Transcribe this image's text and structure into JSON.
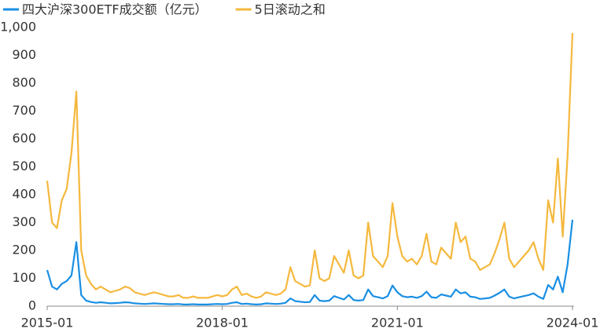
{
  "chart_data": {
    "type": "line",
    "x": [
      "2015-01",
      "2015-02",
      "2015-03",
      "2015-04",
      "2015-05",
      "2015-06",
      "2015-07",
      "2015-08",
      "2015-09",
      "2015-10",
      "2015-11",
      "2015-12",
      "2016-01",
      "2016-02",
      "2016-03",
      "2016-04",
      "2016-05",
      "2016-06",
      "2016-07",
      "2016-08",
      "2016-09",
      "2016-10",
      "2016-11",
      "2016-12",
      "2017-01",
      "2017-02",
      "2017-03",
      "2017-04",
      "2017-05",
      "2017-06",
      "2017-07",
      "2017-08",
      "2017-09",
      "2017-10",
      "2017-11",
      "2017-12",
      "2018-01",
      "2018-02",
      "2018-03",
      "2018-04",
      "2018-05",
      "2018-06",
      "2018-07",
      "2018-08",
      "2018-09",
      "2018-10",
      "2018-11",
      "2018-12",
      "2019-01",
      "2019-02",
      "2019-03",
      "2019-04",
      "2019-05",
      "2019-06",
      "2019-07",
      "2019-08",
      "2019-09",
      "2019-10",
      "2019-11",
      "2019-12",
      "2020-01",
      "2020-02",
      "2020-03",
      "2020-04",
      "2020-05",
      "2020-06",
      "2020-07",
      "2020-08",
      "2020-09",
      "2020-10",
      "2020-11",
      "2020-12",
      "2021-01",
      "2021-02",
      "2021-03",
      "2021-04",
      "2021-05",
      "2021-06",
      "2021-07",
      "2021-08",
      "2021-09",
      "2021-10",
      "2021-11",
      "2021-12",
      "2022-01",
      "2022-02",
      "2022-03",
      "2022-04",
      "2022-05",
      "2022-06",
      "2022-07",
      "2022-08",
      "2022-09",
      "2022-10",
      "2022-11",
      "2022-12",
      "2023-01",
      "2023-02",
      "2023-03",
      "2023-04",
      "2023-05",
      "2023-06",
      "2023-07",
      "2023-08",
      "2023-09",
      "2023-10",
      "2023-11",
      "2023-12",
      "2024-01"
    ],
    "series": [
      {
        "name": "四大沪深300ETF成交额（亿元）",
        "color": "#1a8fe3",
        "values": [
          130,
          70,
          60,
          80,
          90,
          110,
          230,
          40,
          20,
          15,
          12,
          14,
          12,
          10,
          11,
          12,
          14,
          13,
          10,
          9,
          8,
          9,
          10,
          9,
          8,
          7,
          7,
          8,
          6,
          6,
          7,
          6,
          6,
          6,
          7,
          8,
          7,
          8,
          12,
          14,
          8,
          9,
          7,
          6,
          7,
          10,
          9,
          8,
          9,
          12,
          28,
          18,
          16,
          14,
          15,
          40,
          20,
          18,
          20,
          36,
          30,
          24,
          40,
          22,
          20,
          22,
          60,
          36,
          32,
          28,
          36,
          74,
          50,
          36,
          32,
          34,
          30,
          36,
          52,
          32,
          30,
          42,
          38,
          34,
          60,
          46,
          50,
          34,
          32,
          26,
          28,
          30,
          38,
          48,
          60,
          34,
          28,
          32,
          36,
          40,
          46,
          34,
          26,
          76,
          60,
          106,
          50,
          150,
          310
        ]
      },
      {
        "name": "5日滚动之和",
        "color": "#f5b83d",
        "values": [
          450,
          300,
          280,
          380,
          420,
          550,
          770,
          200,
          110,
          80,
          60,
          70,
          60,
          50,
          55,
          60,
          70,
          65,
          50,
          45,
          40,
          45,
          50,
          45,
          40,
          35,
          35,
          40,
          30,
          30,
          35,
          30,
          30,
          30,
          35,
          40,
          35,
          40,
          60,
          70,
          40,
          45,
          35,
          30,
          35,
          50,
          45,
          40,
          45,
          60,
          140,
          90,
          80,
          70,
          75,
          200,
          100,
          90,
          100,
          180,
          150,
          120,
          200,
          110,
          100,
          110,
          300,
          180,
          160,
          140,
          180,
          370,
          250,
          180,
          160,
          170,
          150,
          180,
          260,
          160,
          150,
          210,
          190,
          170,
          300,
          230,
          250,
          170,
          160,
          130,
          140,
          150,
          190,
          240,
          300,
          170,
          140,
          160,
          180,
          200,
          230,
          170,
          130,
          380,
          300,
          530,
          250,
          540,
          980
        ]
      }
    ],
    "xticks": [
      "2015-01",
      "2018-01",
      "2021-01",
      "2024-01"
    ],
    "ylim": [
      0,
      1000
    ],
    "yticks": [
      0,
      100,
      200,
      300,
      400,
      500,
      600,
      700,
      800,
      900,
      {
        "value": 1000,
        "label": "1,000"
      }
    ]
  }
}
